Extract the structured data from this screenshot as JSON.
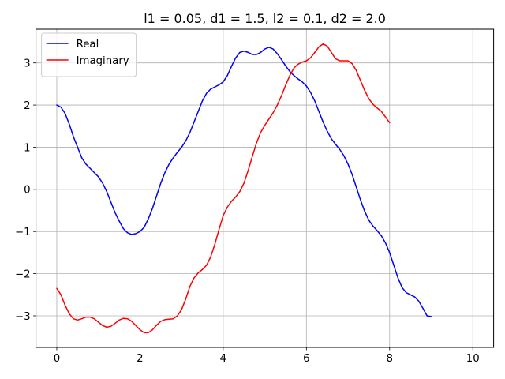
{
  "chart_data": {
    "type": "line",
    "title": "l1 = 0.05, d1 = 1.5, l2 = 0.1, d2 = 2.0",
    "xlabel": "",
    "ylabel": "",
    "xlim": [
      -0.5,
      10.5
    ],
    "ylim": [
      -3.75,
      3.8
    ],
    "xticks": [
      0,
      2,
      4,
      6,
      8,
      10
    ],
    "xtick_labels": [
      "0",
      "2",
      "4",
      "6",
      "8",
      "10"
    ],
    "yticks": [
      3,
      2,
      1,
      0,
      -1,
      -2,
      -3
    ],
    "ytick_labels": [
      "3",
      "2",
      "1",
      "0",
      "−1",
      "−2",
      "−3"
    ],
    "grid": true,
    "legend_position": "top-left",
    "series": [
      {
        "name": "Real",
        "color": "#0000ff",
        "points": [
          [
            0.0,
            2.0
          ],
          [
            0.1,
            1.95
          ],
          [
            0.2,
            1.8
          ],
          [
            0.3,
            1.55
          ],
          [
            0.4,
            1.25
          ],
          [
            0.5,
            1.0
          ],
          [
            0.6,
            0.75
          ],
          [
            0.7,
            0.6
          ],
          [
            0.8,
            0.5
          ],
          [
            0.9,
            0.4
          ],
          [
            1.0,
            0.3
          ],
          [
            1.1,
            0.15
          ],
          [
            1.2,
            -0.05
          ],
          [
            1.3,
            -0.3
          ],
          [
            1.4,
            -0.55
          ],
          [
            1.5,
            -0.75
          ],
          [
            1.6,
            -0.93
          ],
          [
            1.7,
            -1.03
          ],
          [
            1.8,
            -1.07
          ],
          [
            1.9,
            -1.05
          ],
          [
            2.0,
            -1.0
          ],
          [
            2.1,
            -0.9
          ],
          [
            2.2,
            -0.7
          ],
          [
            2.3,
            -0.45
          ],
          [
            2.4,
            -0.15
          ],
          [
            2.5,
            0.15
          ],
          [
            2.6,
            0.4
          ],
          [
            2.7,
            0.6
          ],
          [
            2.8,
            0.75
          ],
          [
            2.9,
            0.88
          ],
          [
            3.0,
            1.0
          ],
          [
            3.1,
            1.15
          ],
          [
            3.2,
            1.35
          ],
          [
            3.3,
            1.6
          ],
          [
            3.4,
            1.85
          ],
          [
            3.5,
            2.1
          ],
          [
            3.6,
            2.28
          ],
          [
            3.7,
            2.38
          ],
          [
            3.8,
            2.43
          ],
          [
            3.9,
            2.48
          ],
          [
            4.0,
            2.55
          ],
          [
            4.1,
            2.7
          ],
          [
            4.2,
            2.92
          ],
          [
            4.3,
            3.12
          ],
          [
            4.4,
            3.25
          ],
          [
            4.5,
            3.28
          ],
          [
            4.6,
            3.25
          ],
          [
            4.7,
            3.2
          ],
          [
            4.8,
            3.2
          ],
          [
            4.9,
            3.25
          ],
          [
            5.0,
            3.33
          ],
          [
            5.1,
            3.37
          ],
          [
            5.2,
            3.33
          ],
          [
            5.3,
            3.22
          ],
          [
            5.4,
            3.08
          ],
          [
            5.5,
            2.93
          ],
          [
            5.6,
            2.8
          ],
          [
            5.7,
            2.7
          ],
          [
            5.8,
            2.62
          ],
          [
            5.9,
            2.55
          ],
          [
            6.0,
            2.45
          ],
          [
            6.1,
            2.3
          ],
          [
            6.2,
            2.1
          ],
          [
            6.3,
            1.85
          ],
          [
            6.4,
            1.6
          ],
          [
            6.5,
            1.38
          ],
          [
            6.6,
            1.2
          ],
          [
            6.7,
            1.07
          ],
          [
            6.8,
            0.95
          ],
          [
            6.9,
            0.8
          ],
          [
            7.0,
            0.6
          ],
          [
            7.1,
            0.35
          ],
          [
            7.2,
            0.05
          ],
          [
            7.3,
            -0.25
          ],
          [
            7.4,
            -0.52
          ],
          [
            7.5,
            -0.73
          ],
          [
            7.6,
            -0.87
          ],
          [
            7.7,
            -0.98
          ],
          [
            7.8,
            -1.1
          ],
          [
            7.9,
            -1.27
          ],
          [
            8.0,
            -1.5
          ],
          [
            8.1,
            -1.8
          ],
          [
            8.2,
            -2.1
          ],
          [
            8.3,
            -2.33
          ],
          [
            8.4,
            -2.45
          ],
          [
            8.5,
            -2.5
          ],
          [
            8.6,
            -2.55
          ],
          [
            8.7,
            -2.65
          ],
          [
            8.8,
            -2.82
          ],
          [
            8.9,
            -3.0
          ],
          [
            9.0,
            -3.02
          ]
        ]
      },
      {
        "name": "Imaginary",
        "color": "#ff0000",
        "points": [
          [
            0.0,
            -2.35
          ],
          [
            0.1,
            -2.5
          ],
          [
            0.2,
            -2.75
          ],
          [
            0.3,
            -2.95
          ],
          [
            0.4,
            -3.07
          ],
          [
            0.5,
            -3.1
          ],
          [
            0.6,
            -3.07
          ],
          [
            0.7,
            -3.03
          ],
          [
            0.8,
            -3.03
          ],
          [
            0.9,
            -3.07
          ],
          [
            1.0,
            -3.15
          ],
          [
            1.1,
            -3.23
          ],
          [
            1.2,
            -3.27
          ],
          [
            1.3,
            -3.25
          ],
          [
            1.4,
            -3.18
          ],
          [
            1.5,
            -3.1
          ],
          [
            1.6,
            -3.06
          ],
          [
            1.7,
            -3.07
          ],
          [
            1.8,
            -3.13
          ],
          [
            1.9,
            -3.23
          ],
          [
            2.0,
            -3.33
          ],
          [
            2.1,
            -3.4
          ],
          [
            2.2,
            -3.4
          ],
          [
            2.3,
            -3.33
          ],
          [
            2.4,
            -3.22
          ],
          [
            2.5,
            -3.13
          ],
          [
            2.6,
            -3.09
          ],
          [
            2.7,
            -3.08
          ],
          [
            2.8,
            -3.07
          ],
          [
            2.9,
            -3.0
          ],
          [
            3.0,
            -2.85
          ],
          [
            3.1,
            -2.6
          ],
          [
            3.2,
            -2.3
          ],
          [
            3.3,
            -2.1
          ],
          [
            3.4,
            -1.98
          ],
          [
            3.5,
            -1.9
          ],
          [
            3.6,
            -1.8
          ],
          [
            3.7,
            -1.6
          ],
          [
            3.8,
            -1.3
          ],
          [
            3.9,
            -0.95
          ],
          [
            4.0,
            -0.62
          ],
          [
            4.1,
            -0.42
          ],
          [
            4.2,
            -0.28
          ],
          [
            4.3,
            -0.18
          ],
          [
            4.4,
            -0.05
          ],
          [
            4.5,
            0.15
          ],
          [
            4.6,
            0.45
          ],
          [
            4.7,
            0.78
          ],
          [
            4.8,
            1.1
          ],
          [
            4.9,
            1.35
          ],
          [
            5.0,
            1.52
          ],
          [
            5.1,
            1.67
          ],
          [
            5.2,
            1.82
          ],
          [
            5.3,
            2.0
          ],
          [
            5.4,
            2.22
          ],
          [
            5.5,
            2.47
          ],
          [
            5.6,
            2.7
          ],
          [
            5.7,
            2.88
          ],
          [
            5.8,
            2.97
          ],
          [
            5.9,
            3.02
          ],
          [
            6.0,
            3.05
          ],
          [
            6.1,
            3.12
          ],
          [
            6.2,
            3.25
          ],
          [
            6.3,
            3.38
          ],
          [
            6.4,
            3.45
          ],
          [
            6.5,
            3.4
          ],
          [
            6.6,
            3.25
          ],
          [
            6.7,
            3.1
          ],
          [
            6.8,
            3.05
          ],
          [
            6.9,
            3.05
          ],
          [
            7.0,
            3.05
          ],
          [
            7.1,
            2.98
          ],
          [
            7.2,
            2.82
          ],
          [
            7.3,
            2.58
          ],
          [
            7.4,
            2.35
          ],
          [
            7.5,
            2.15
          ],
          [
            7.6,
            2.02
          ],
          [
            7.7,
            1.93
          ],
          [
            7.8,
            1.85
          ],
          [
            7.9,
            1.72
          ],
          [
            8.0,
            1.58
          ]
        ]
      }
    ]
  }
}
